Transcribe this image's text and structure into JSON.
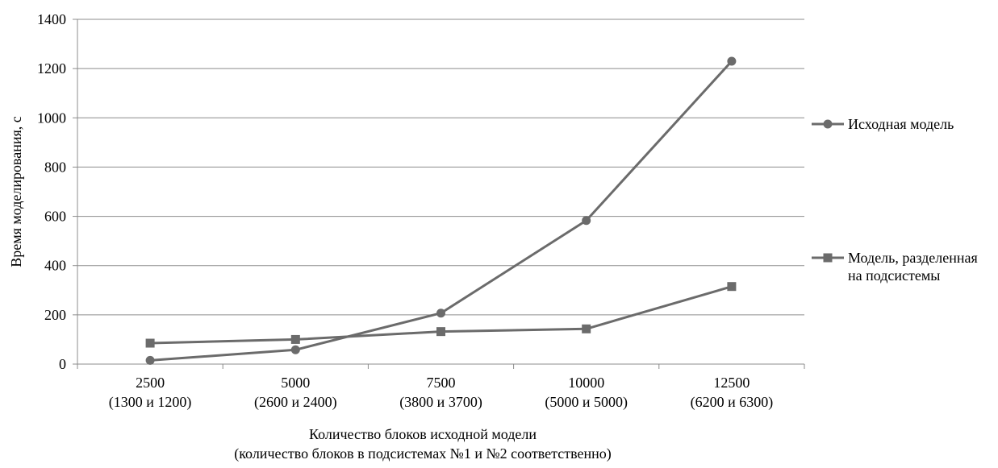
{
  "chart_data": {
    "type": "line",
    "categories": [
      [
        "2500",
        "(1300 и 1200)"
      ],
      [
        "5000",
        "(2600 и 2400)"
      ],
      [
        "7500",
        "(3800 и 3700)"
      ],
      [
        "10000",
        "(5000 и 5000)"
      ],
      [
        "12500",
        "(6200 и 6300)"
      ]
    ],
    "series": [
      {
        "name": "Исходная модель",
        "marker": "circle",
        "color": "#6b6b6b",
        "values": [
          15,
          58,
          207,
          583,
          1230
        ]
      },
      {
        "name": "Модель, разделенная на подсистемы",
        "name_lines": [
          "Модель, разделенная",
          "на подсистемы"
        ],
        "marker": "square",
        "color": "#6b6b6b",
        "values": [
          85,
          100,
          132,
          143,
          315
        ]
      }
    ],
    "title": "",
    "xlabel": "Количество блоков исходной модели",
    "xlabel_sub": "(количество блоков в подсистемах №1 и №2 соответственно)",
    "ylabel": "Время моделирования, с",
    "ylim": [
      0,
      1400
    ],
    "yticks": [
      0,
      200,
      400,
      600,
      800,
      1000,
      1200,
      1400
    ],
    "grid": true,
    "legend_position": "right"
  }
}
